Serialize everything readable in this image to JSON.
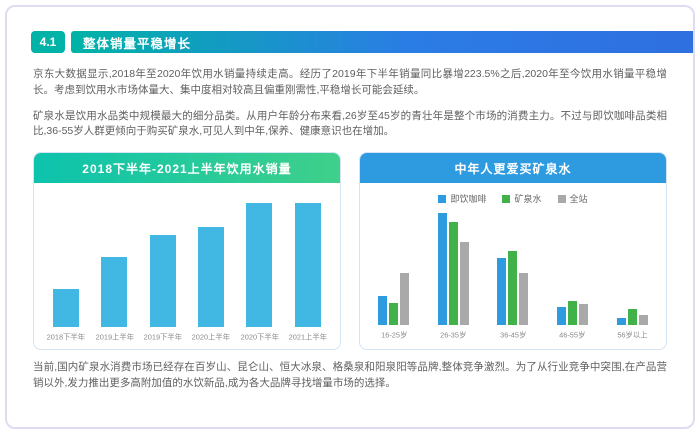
{
  "header": {
    "number": "4.1",
    "title": "整体销量平稳增长"
  },
  "paragraphs": {
    "p1": "京东大数据显示,2018年至2020年饮用水销量持续走高。经历了2019年下半年销量同比暴增223.5%之后,2020年至今饮用水销量平稳增长。考虑到饮用水市场体量大、集中度相对较高且偏重刚需性,平稳增长可能会延续。",
    "p2": "矿泉水是饮用水品类中规模最大的细分品类。从用户年龄分布来看,26岁至45岁的青壮年是整个市场的消费主力。不过与即饮咖啡品类相比,36-55岁人群更倾向于购买矿泉水,可见人到中年,保养、健康意识也在增加。",
    "p3": "当前,国内矿泉水消费市场已经存在百岁山、昆仑山、恒大冰泉、格桑泉和阳泉阳等品牌,整体竞争激烈。为了从行业竞争中突围,在产品营销以外,发力推出更多高附加值的水饮新品,成为各大品牌寻找增量市场的选择。"
  },
  "colors": {
    "accent_teal": "#00b3a6",
    "accent_blue": "#2e9be1",
    "border_lavender": "#dedcf2",
    "card_border": "#d3e4f5",
    "left_bar": "#41b7e4",
    "series_coffee": "#2e9be1",
    "series_water": "#41b149",
    "series_all": "#a9a9a9"
  },
  "chart_data": [
    {
      "type": "bar",
      "title": "2018下半年-2021上半年饮用水销量",
      "categories": [
        "2018下半年",
        "2019上半年",
        "2019下半年",
        "2020上半年",
        "2020下半年",
        "2021上半年"
      ],
      "values": [
        30,
        55,
        72,
        78,
        97,
        97
      ],
      "bar_color": "#41b7e4",
      "xlabel": "",
      "ylabel": "",
      "ylim": [
        0,
        100
      ],
      "grid": false,
      "legend": "none"
    },
    {
      "type": "bar",
      "title": "中年人更爱买矿泉水",
      "categories": [
        "16-25岁",
        "26-35岁",
        "36-45岁",
        "46-55岁",
        "56岁以上"
      ],
      "series": [
        {
          "name": "即饮咖啡",
          "color": "#2e9be1",
          "values": [
            26,
            100,
            60,
            16,
            6
          ]
        },
        {
          "name": "矿泉水",
          "color": "#41b149",
          "values": [
            20,
            92,
            66,
            21,
            14
          ]
        },
        {
          "name": "全站",
          "color": "#a9a9a9",
          "values": [
            46,
            74,
            46,
            19,
            9
          ]
        }
      ],
      "xlabel": "",
      "ylabel": "",
      "ylim": [
        0,
        100
      ],
      "grid": false,
      "legend_position": "top-center"
    }
  ]
}
